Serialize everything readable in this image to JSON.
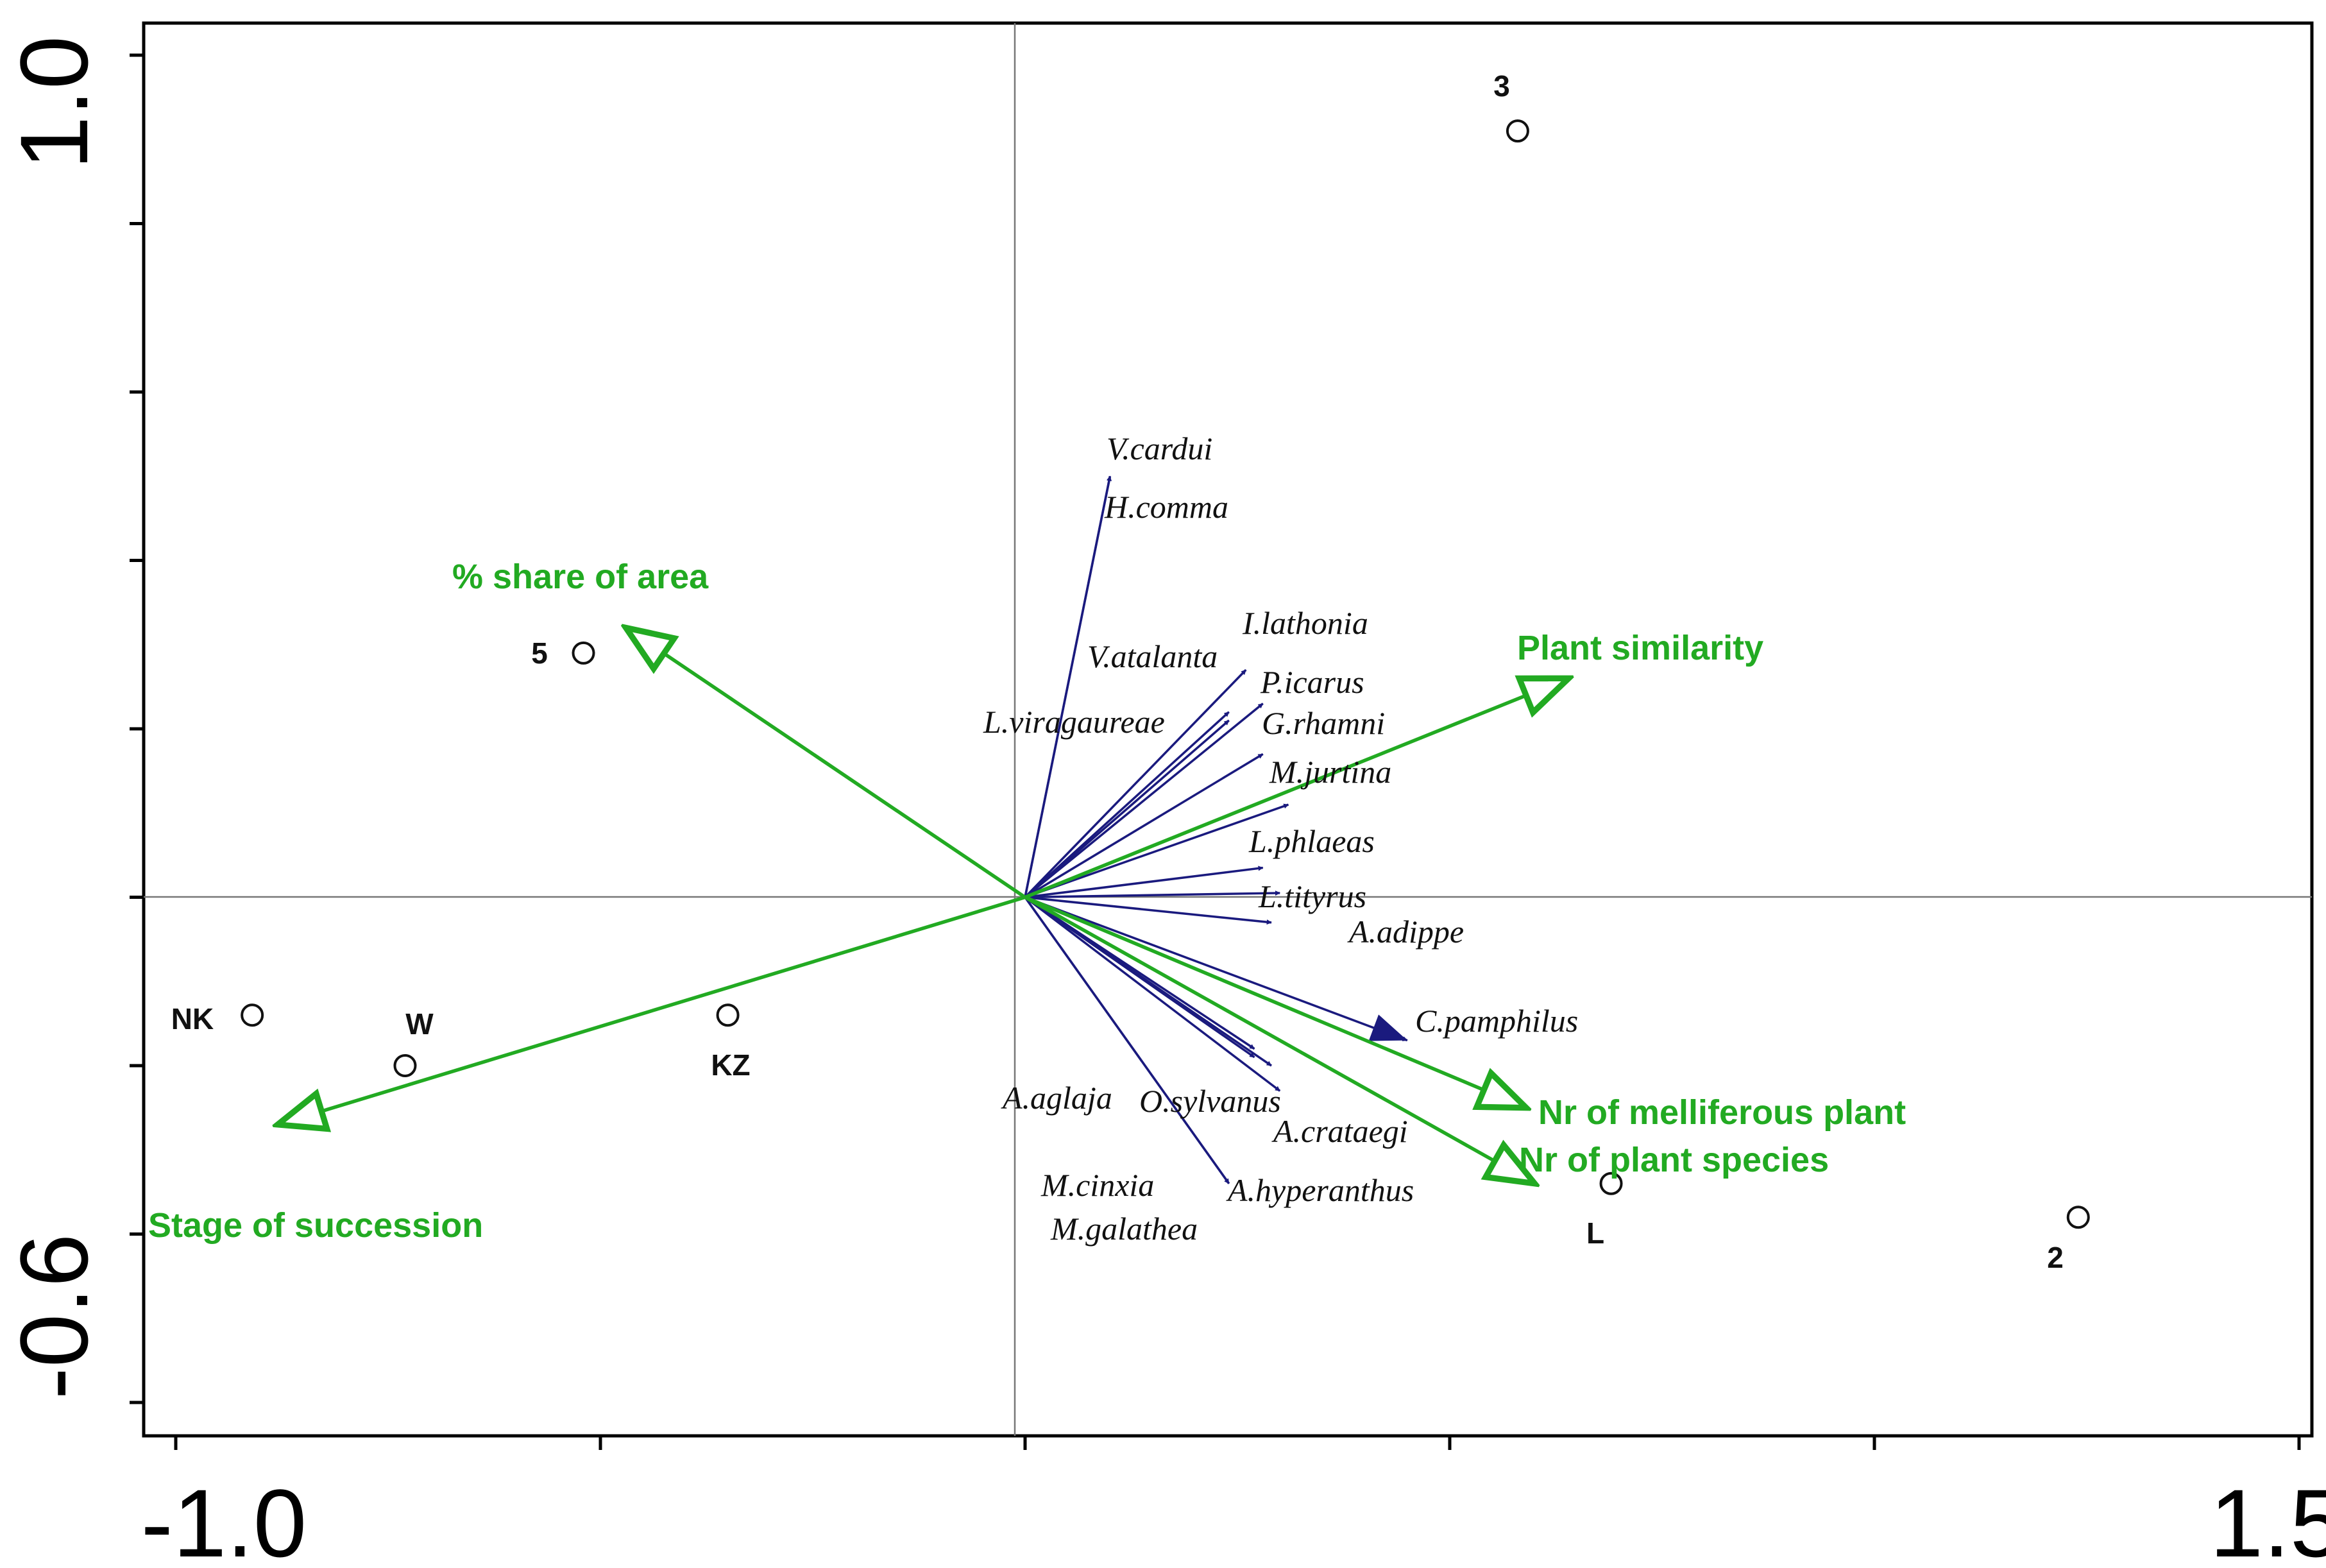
{
  "chart_data": {
    "type": "scatter",
    "title": "",
    "xlabel": "",
    "ylabel": "",
    "xlim": [
      -1.0,
      1.5
    ],
    "ylim": [
      -0.6,
      1.0
    ],
    "tick_labels": {
      "x_min": "-1.0",
      "x_max": "1.5",
      "y_min": "-0.6",
      "y_max": "1.0"
    },
    "grid": false,
    "species_color": "#1a1a7e",
    "env_color": "#22aa22",
    "species": [
      {
        "name": "V.cardui",
        "x": 0.1,
        "y": 0.5
      },
      {
        "name": "H.comma",
        "x": 0.1,
        "y": 0.5
      },
      {
        "name": "I.lathonia",
        "x": 0.26,
        "y": 0.27
      },
      {
        "name": "V.atalanta",
        "x": 0.24,
        "y": 0.22
      },
      {
        "name": "P.icarus",
        "x": 0.28,
        "y": 0.23
      },
      {
        "name": "L.viragaureae",
        "x": 0.24,
        "y": 0.21
      },
      {
        "name": "G.rhamni",
        "x": 0.28,
        "y": 0.17
      },
      {
        "name": "M.jurtina",
        "x": 0.31,
        "y": 0.11
      },
      {
        "name": "L.phlaeas",
        "x": 0.28,
        "y": 0.035
      },
      {
        "name": "L.tityrus",
        "x": 0.3,
        "y": 0.005
      },
      {
        "name": "A.adippe",
        "x": 0.29,
        "y": -0.03
      },
      {
        "name": "C.pamphilus",
        "x": 0.45,
        "y": -0.17
      },
      {
        "name": "O.sylvanus",
        "x": 0.29,
        "y": -0.2
      },
      {
        "name": "A.aglaja",
        "x": 0.27,
        "y": -0.18
      },
      {
        "name": "A.crataegi",
        "x": 0.3,
        "y": -0.23
      },
      {
        "name": "M.cinxia",
        "x": 0.24,
        "y": -0.34
      },
      {
        "name": "M.galathea",
        "x": 0.24,
        "y": -0.34
      },
      {
        "name": "A.hyperanthus",
        "x": 0.27,
        "y": -0.19
      }
    ],
    "environmental_variables": [
      {
        "name": "% share of area",
        "x": -0.47,
        "y": 0.32
      },
      {
        "name": "Plant similarity",
        "x": 0.64,
        "y": 0.26
      },
      {
        "name": "Stage of succession",
        "x": -0.88,
        "y": -0.27
      },
      {
        "name": "Nr of melliferous plant",
        "x": 0.59,
        "y": -0.25
      },
      {
        "name": "Nr of plant species",
        "x": 0.6,
        "y": -0.34
      }
    ],
    "samples": [
      {
        "name": "3",
        "x": 0.58,
        "y": 0.91
      },
      {
        "name": "5",
        "x": -0.52,
        "y": 0.29
      },
      {
        "name": "NK",
        "x": -0.91,
        "y": -0.14
      },
      {
        "name": "W",
        "x": -0.73,
        "y": -0.2
      },
      {
        "name": "KZ",
        "x": -0.35,
        "y": -0.14
      },
      {
        "name": "L",
        "x": 0.69,
        "y": -0.34
      },
      {
        "name": "2",
        "x": 1.24,
        "y": -0.38
      }
    ]
  }
}
